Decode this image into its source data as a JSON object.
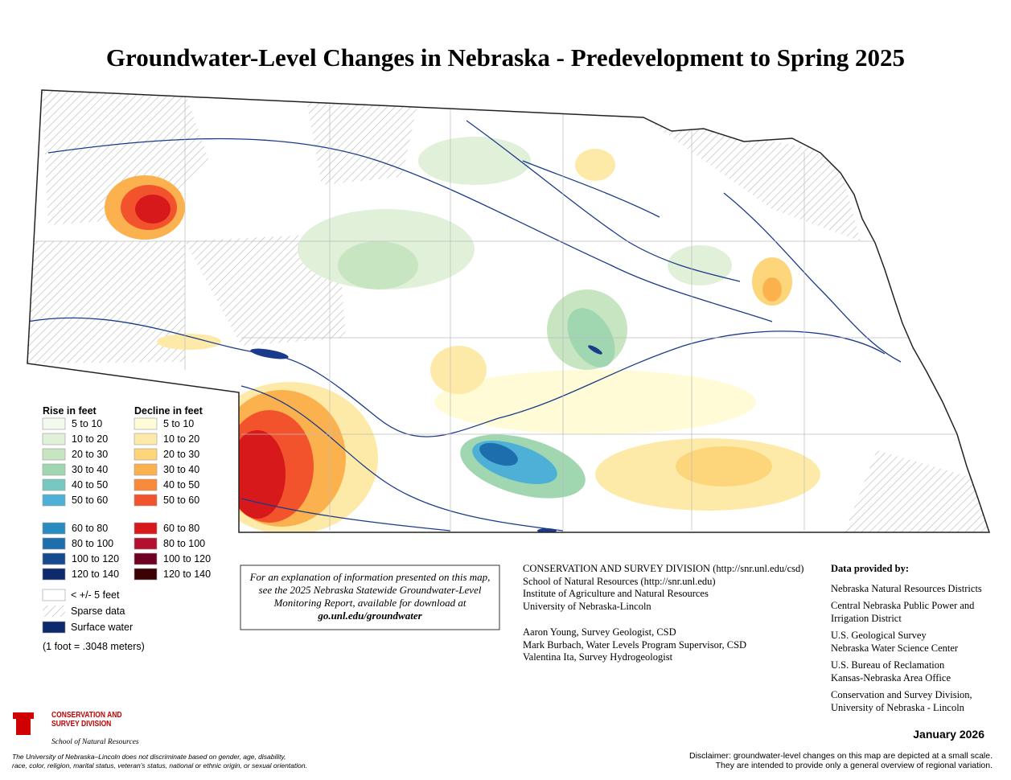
{
  "title": "Groundwater-Level Changes in Nebraska - Predevelopment to Spring 2025",
  "legend": {
    "rise_title": "Rise in feet",
    "rise": [
      {
        "label": "5 to 10",
        "color": "#f3f9ee"
      },
      {
        "label": "10 to 20",
        "color": "#e0f0d9"
      },
      {
        "label": "20 to 30",
        "color": "#c7e5c1"
      },
      {
        "label": "30 to 40",
        "color": "#a0d6b0"
      },
      {
        "label": "40 to 50",
        "color": "#78c8c2"
      },
      {
        "label": "50 to 60",
        "color": "#4eb0d6"
      },
      {
        "label": "60 to 80",
        "color": "#2a8bc0"
      },
      {
        "label": "80 to 100",
        "color": "#1c6ead"
      },
      {
        "label": "100 to 120",
        "color": "#154b8e"
      },
      {
        "label": "120 to 140",
        "color": "#0c2a6c"
      }
    ],
    "decline_title": "Decline in feet",
    "decline": [
      {
        "label": "5 to 10",
        "color": "#fffbd6"
      },
      {
        "label": "10 to 20",
        "color": "#feeaa8"
      },
      {
        "label": "20 to 30",
        "color": "#fdd57a"
      },
      {
        "label": "30 to 40",
        "color": "#fbb24e"
      },
      {
        "label": "40 to 50",
        "color": "#f98a3a"
      },
      {
        "label": "50 to 60",
        "color": "#f2532d"
      },
      {
        "label": "60 to 80",
        "color": "#d7191c"
      },
      {
        "label": "80 to 100",
        "color": "#b3102f"
      },
      {
        "label": "100 to 120",
        "color": "#6e0022"
      },
      {
        "label": "120 to 140",
        "color": "#3a0202"
      }
    ],
    "other": [
      {
        "label": "< +/- 5 feet"
      },
      {
        "label": "Sparse data"
      },
      {
        "label": "Surface water",
        "color": "#0c2a6c"
      }
    ],
    "note": "(1 foot = .3048 meters)"
  },
  "explanation": {
    "text": "For an explanation of information presented on this map, see the 2025 Nebraska Statewide Groundwater-Level Monitoring Report, available for download at",
    "link": "go.unl.edu/groundwater"
  },
  "credits": {
    "org": [
      "CONSERVATION AND SURVEY DIVISION (http://snr.unl.edu/csd)",
      "School of Natural Resources (http://snr.unl.edu)",
      "Institute of Agriculture and Natural Resources",
      "University of Nebraska-Lincoln"
    ],
    "people": [
      "Aaron Young, Survey Geologist, CSD",
      "Mark Burbach, Water Levels Program Supervisor, CSD",
      "Valentina Ita, Survey Hydrogeologist"
    ]
  },
  "data_provided": {
    "title": "Data provided by:",
    "items": [
      [
        "Nebraska Natural Resources Districts"
      ],
      [
        "Central Nebraska Public Power and",
        "Irrigation District"
      ],
      [
        "U.S. Geological Survey",
        "Nebraska Water Science Center"
      ],
      [
        "U.S. Bureau of Reclamation",
        "Kansas-Nebraska Area Office"
      ],
      [
        "Conservation and Survey Division,",
        "University of Nebraska - Lincoln"
      ]
    ]
  },
  "logo": {
    "mark": "N",
    "line1": "CONSERVATION AND",
    "line2": "SURVEY DIVISION",
    "school": "School of Natural Resources"
  },
  "date": "January 2026",
  "disclaimer": [
    "Disclaimer: groundwater-level changes on this map are depicted at a small scale.",
    "They are intended to provide only a general overview of regional variation."
  ],
  "nondiscrimination": [
    "The University of Nebraska–Lincoln does not discriminate based on gender, age, disability,",
    "race, color, religion, marital status, veteran’s status, national or ethnic origin, or sexual orientation."
  ]
}
